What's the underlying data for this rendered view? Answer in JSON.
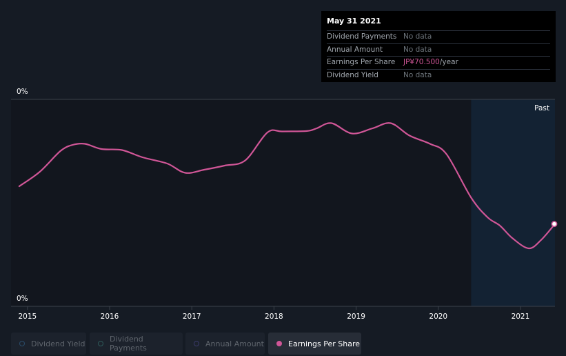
{
  "tooltip": {
    "date": "May 31 2021",
    "rows": [
      {
        "label": "Dividend Payments",
        "value": "No data"
      },
      {
        "label": "Annual Amount",
        "value": "No data"
      },
      {
        "label": "Earnings Per Share",
        "value": "JP¥70.500",
        "unit": "/year"
      },
      {
        "label": "Dividend Yield",
        "value": "No data"
      }
    ]
  },
  "legend": [
    {
      "label": "Dividend Yield",
      "color": "#2a4c6a",
      "active": false
    },
    {
      "label": "Dividend Payments",
      "color": "#2e5a5a",
      "active": false
    },
    {
      "label": "Annual Amount",
      "color": "#3a3a6a",
      "active": false
    },
    {
      "label": "Earnings Per Share",
      "color": "#d05697",
      "active": true
    }
  ],
  "chart_data": {
    "type": "line",
    "y_top_label": "0%",
    "y_bottom_label": "0%",
    "past_label": "Past",
    "xlim": [
      2014.8,
      2021.42
    ],
    "x_ticks": [
      2015,
      2016,
      2017,
      2018,
      2019,
      2020,
      2021
    ],
    "past_start": 2020.4,
    "series": [
      {
        "name": "Earnings Per Share",
        "color": "#d05697",
        "points": [
          [
            2014.9,
            0.42
          ],
          [
            2015.15,
            0.35
          ],
          [
            2015.4,
            0.25
          ],
          [
            2015.55,
            0.22
          ],
          [
            2015.7,
            0.215
          ],
          [
            2015.9,
            0.24
          ],
          [
            2016.15,
            0.245
          ],
          [
            2016.4,
            0.28
          ],
          [
            2016.7,
            0.31
          ],
          [
            2016.92,
            0.355
          ],
          [
            2017.15,
            0.34
          ],
          [
            2017.4,
            0.32
          ],
          [
            2017.65,
            0.295
          ],
          [
            2017.92,
            0.16
          ],
          [
            2018.1,
            0.155
          ],
          [
            2018.4,
            0.153
          ],
          [
            2018.52,
            0.14
          ],
          [
            2018.7,
            0.115
          ],
          [
            2018.95,
            0.165
          ],
          [
            2019.2,
            0.14
          ],
          [
            2019.42,
            0.115
          ],
          [
            2019.65,
            0.175
          ],
          [
            2019.9,
            0.215
          ],
          [
            2020.1,
            0.265
          ],
          [
            2020.4,
            0.475
          ],
          [
            2020.6,
            0.57
          ],
          [
            2020.75,
            0.61
          ],
          [
            2020.9,
            0.67
          ],
          [
            2021.1,
            0.72
          ],
          [
            2021.25,
            0.68
          ],
          [
            2021.42,
            0.602
          ]
        ]
      }
    ],
    "tooltip_date": "May 31 2021"
  }
}
